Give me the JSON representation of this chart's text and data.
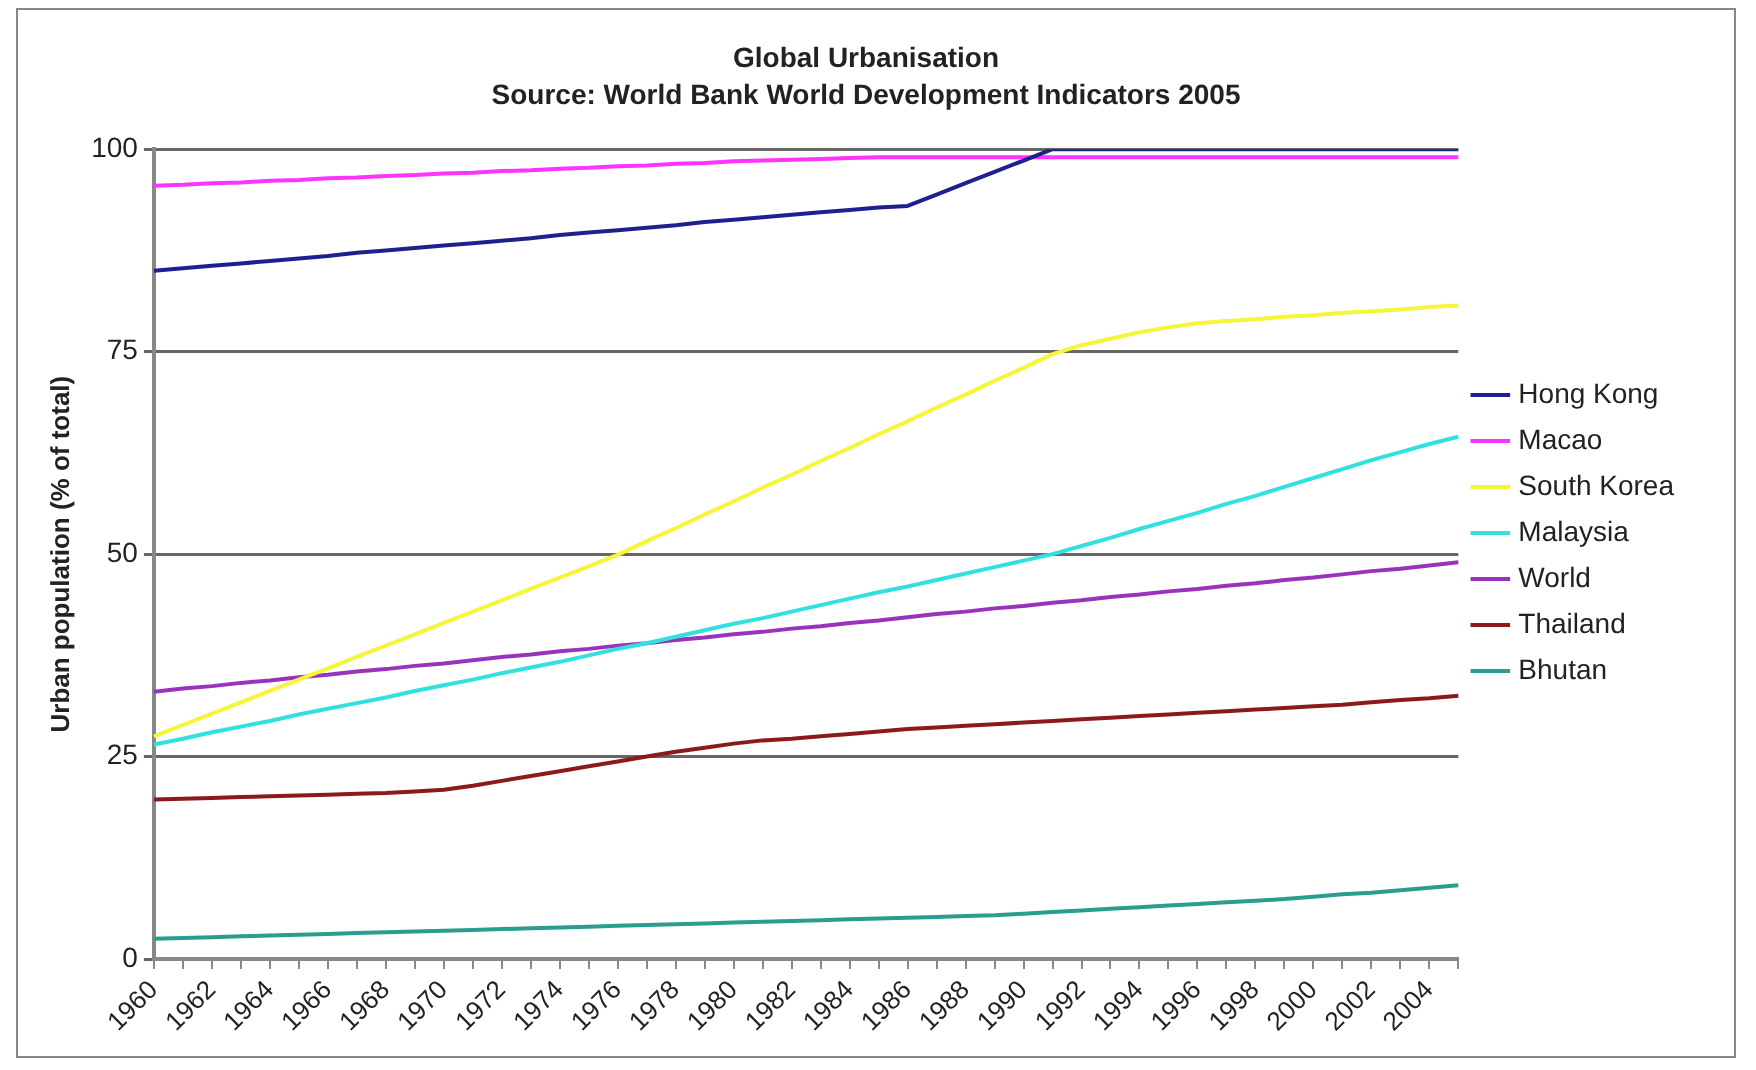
{
  "chart_data": {
    "type": "line",
    "title": "Global Urbanisation",
    "subtitle": "Source: World Bank World Development Indicators 2005",
    "ylabel": "Urban population (% of total)",
    "categories": [
      "1960",
      null,
      "1962",
      null,
      "1964",
      null,
      "1966",
      null,
      "1968",
      null,
      "1970",
      null,
      "1972",
      null,
      "1974",
      null,
      "1976",
      null,
      "1978",
      null,
      "1980",
      null,
      "1982",
      null,
      "1984",
      null,
      "1986",
      null,
      "1988",
      null,
      "1990",
      null,
      "1992",
      null,
      "1994",
      null,
      "1996",
      null,
      "1998",
      null,
      "2000",
      null,
      "2002",
      null,
      "2004",
      null
    ],
    "series": [
      {
        "name": "Hong Kong",
        "color": "#1f1f8f",
        "values": [
          85,
          85.3,
          85.6,
          85.9,
          86.2,
          86.5,
          86.8,
          87.2,
          87.5,
          87.8,
          88.1,
          88.4,
          88.7,
          89,
          89.4,
          89.7,
          90,
          90.3,
          90.6,
          91,
          91.3,
          91.6,
          91.9,
          92.2,
          92.5,
          92.8,
          93,
          94.4,
          95.8,
          97.2,
          98.6,
          100,
          100,
          100,
          100,
          100,
          100,
          100,
          100,
          100,
          100,
          100,
          100,
          100,
          100,
          100
        ]
      },
      {
        "name": "Macao",
        "color": "#ff33ff",
        "values": [
          95.5,
          95.6,
          95.8,
          95.9,
          96.1,
          96.2,
          96.4,
          96.5,
          96.7,
          96.8,
          97,
          97.1,
          97.3,
          97.4,
          97.6,
          97.7,
          97.9,
          98,
          98.2,
          98.3,
          98.5,
          98.6,
          98.7,
          98.8,
          98.9,
          99,
          99,
          99,
          99,
          99,
          99,
          99,
          99,
          99,
          99,
          99,
          99,
          99,
          99,
          99,
          99,
          99,
          99,
          99,
          99,
          99
        ]
      },
      {
        "name": "South Korea",
        "color": "#f5f53a",
        "values": [
          27.5,
          28.9,
          30.3,
          31.7,
          33.1,
          34.5,
          35.9,
          37.3,
          38.7,
          40.1,
          41.5,
          42.9,
          44.3,
          45.7,
          47.1,
          48.5,
          49.9,
          51.6,
          53.2,
          54.9,
          56.5,
          58.2,
          59.8,
          61.5,
          63.1,
          64.8,
          66.4,
          68.1,
          69.7,
          71.4,
          73,
          74.7,
          75.8,
          76.6,
          77.4,
          78,
          78.5,
          78.8,
          79,
          79.3,
          79.5,
          79.8,
          80,
          80.2,
          80.5,
          80.7
        ]
      },
      {
        "name": "Malaysia",
        "color": "#33e0e0",
        "values": [
          26.5,
          27.2,
          28,
          28.7,
          29.4,
          30.2,
          30.9,
          31.6,
          32.3,
          33.1,
          33.8,
          34.5,
          35.3,
          36,
          36.7,
          37.5,
          38.3,
          39,
          39.8,
          40.6,
          41.4,
          42.1,
          42.9,
          43.7,
          44.5,
          45.3,
          46,
          46.8,
          47.6,
          48.4,
          49.2,
          50,
          51,
          52,
          53.1,
          54.1,
          55.1,
          56.2,
          57.2,
          58.3,
          59.4,
          60.5,
          61.6,
          62.6,
          63.6,
          64.5
        ]
      },
      {
        "name": "World",
        "color": "#9933bb",
        "values": [
          33,
          33.4,
          33.7,
          34.1,
          34.4,
          34.8,
          35.1,
          35.5,
          35.8,
          36.2,
          36.5,
          36.9,
          37.3,
          37.6,
          38,
          38.3,
          38.7,
          39,
          39.4,
          39.7,
          40.1,
          40.4,
          40.8,
          41.1,
          41.5,
          41.8,
          42.2,
          42.6,
          42.9,
          43.3,
          43.6,
          44,
          44.3,
          44.7,
          45,
          45.4,
          45.7,
          46.1,
          46.4,
          46.8,
          47.1,
          47.5,
          47.9,
          48.2,
          48.6,
          49
        ]
      },
      {
        "name": "Thailand",
        "color": "#8b1a1a",
        "values": [
          19.7,
          19.8,
          19.9,
          20,
          20.1,
          20.2,
          20.3,
          20.4,
          20.5,
          20.7,
          20.9,
          21.4,
          22,
          22.6,
          23.2,
          23.8,
          24.4,
          25,
          25.6,
          26.1,
          26.6,
          27,
          27.2,
          27.5,
          27.8,
          28.1,
          28.4,
          28.6,
          28.8,
          29,
          29.2,
          29.4,
          29.6,
          29.8,
          30,
          30.2,
          30.4,
          30.6,
          30.8,
          31,
          31.2,
          31.4,
          31.7,
          32,
          32.2,
          32.5
        ]
      },
      {
        "name": "Bhutan",
        "color": "#2a9d8f",
        "values": [
          2.5,
          2.6,
          2.7,
          2.8,
          2.9,
          3,
          3.1,
          3.2,
          3.3,
          3.4,
          3.5,
          3.6,
          3.7,
          3.8,
          3.9,
          4,
          4.1,
          4.2,
          4.3,
          4.4,
          4.5,
          4.6,
          4.7,
          4.8,
          4.9,
          5,
          5.1,
          5.2,
          5.3,
          5.4,
          5.6,
          5.8,
          6,
          6.2,
          6.4,
          6.6,
          6.8,
          7,
          7.2,
          7.4,
          7.7,
          8,
          8.2,
          8.5,
          8.8,
          9.1
        ]
      }
    ],
    "ylim": [
      0,
      100
    ],
    "yticks": [
      0,
      25,
      50,
      75,
      100
    ],
    "grid": "y",
    "legend": "right",
    "marker": "none",
    "line_style": "solid"
  }
}
